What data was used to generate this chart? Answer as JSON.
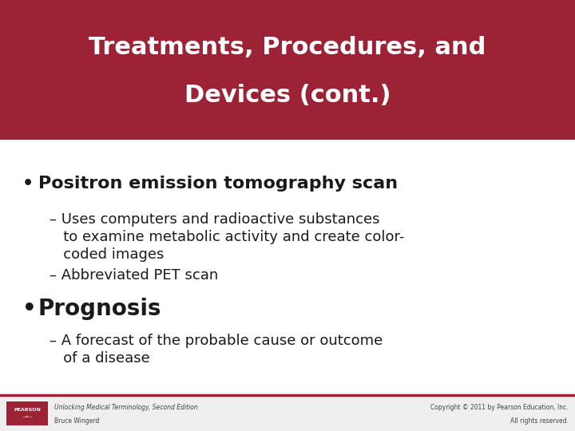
{
  "title_line1": "Treatments, Procedures, and",
  "title_line2": "Devices (cont.)",
  "title_bg_color": "#9B2335",
  "title_text_color": "#FFFFFF",
  "slide_bg_color": "#FFFFFF",
  "bullet1_text": "Positron emission tomography scan",
  "sub1a_line1": "– Uses computers and radioactive substances",
  "sub1a_line2": "   to examine metabolic activity and create color-",
  "sub1a_line3": "   coded images",
  "sub1b_text": "– Abbreviated PET scan",
  "bullet2_text": "Prognosis",
  "sub2a_line1": "– A forecast of the probable cause or outcome",
  "sub2a_line2": "   of a disease",
  "footer_left_line1": "Unlocking Medical Terminology, Second Edition",
  "footer_left_line2": "Bruce Wingerd",
  "footer_right_line1": "Copyright © 2011 by Pearson Education, Inc.",
  "footer_right_line2": "All rights reserved.",
  "footer_bar_color": "#9B2335",
  "text_color": "#1a1a1a",
  "footer_text_color": "#444444",
  "title_fontsize": 22,
  "bullet1_fontsize": 16,
  "bullet2_fontsize": 20,
  "sub_fontsize": 13,
  "footer_fontsize": 5.5
}
